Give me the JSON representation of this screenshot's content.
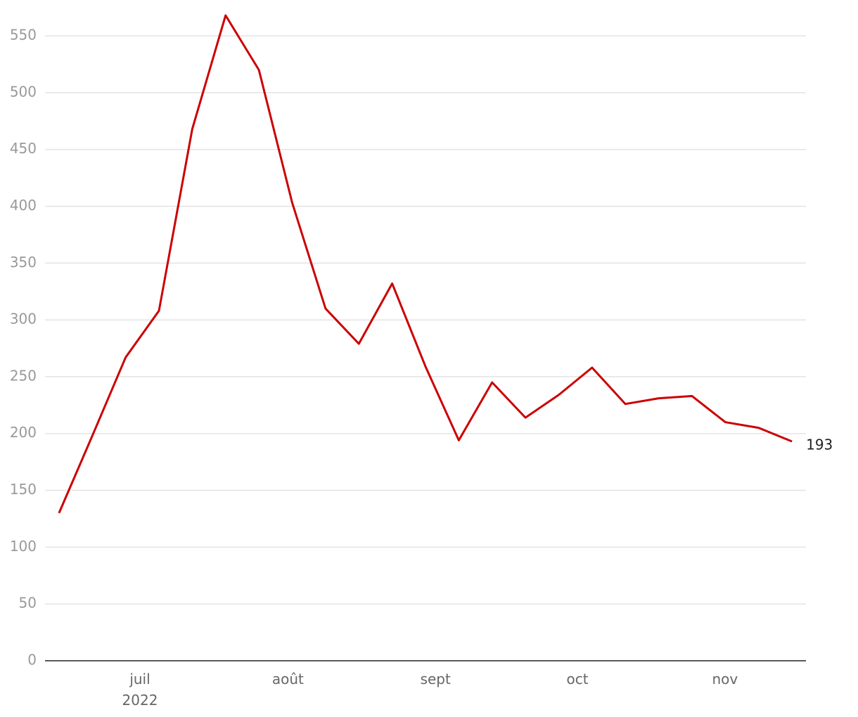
{
  "chart_data": {
    "type": "line",
    "categories": [
      null,
      null,
      null,
      null,
      null,
      null,
      null,
      null,
      null,
      null,
      null,
      null,
      null,
      null,
      null,
      null,
      null,
      null,
      null,
      null,
      null,
      null,
      null
    ],
    "series": [
      {
        "color": "#cc0000",
        "values": [
          130,
          198,
          267,
          308,
          468,
          568,
          520,
          403,
          310,
          279,
          332,
          259,
          194,
          245,
          214,
          234,
          258,
          226,
          231,
          233,
          210,
          205,
          193
        ],
        "value_labels": [
          null,
          null,
          null,
          null,
          null,
          null,
          null,
          null,
          null,
          null,
          null,
          null,
          null,
          null,
          null,
          null,
          null,
          null,
          null,
          null,
          null,
          null,
          "193"
        ]
      }
    ],
    "xlim": [
      -0.42,
      22.42
    ],
    "xticks": [
      {
        "value": 2.43,
        "label": "juil 2022"
      },
      {
        "value": 6.87,
        "label": "août"
      },
      {
        "value": 11.3,
        "label": "sept"
      },
      {
        "value": 15.56,
        "label": "oct"
      },
      {
        "value": 19.99,
        "label": "nov"
      }
    ],
    "ylim": [
      0,
      550
    ],
    "yticks": [
      0,
      50,
      100,
      150,
      200,
      250,
      300,
      350,
      400,
      450,
      500,
      550
    ],
    "grid": true
  }
}
